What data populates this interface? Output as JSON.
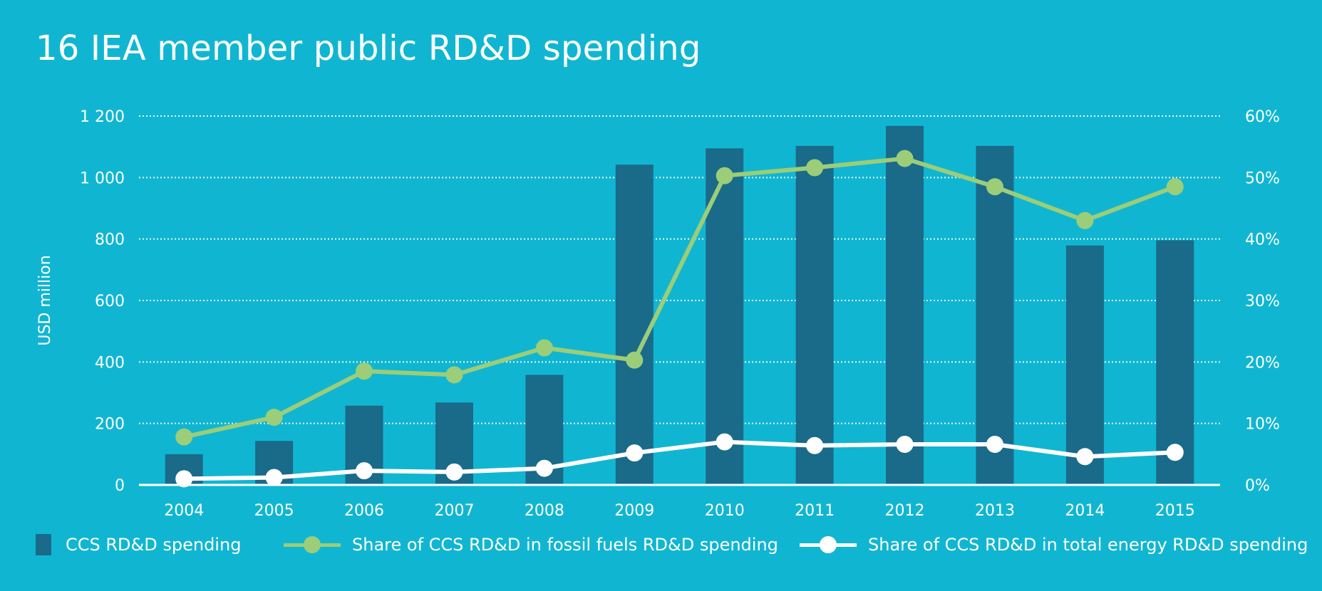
{
  "title": "16 IEA member public RD&D spending",
  "chart_data": {
    "type": "bar",
    "categories": [
      "2004",
      "2005",
      "2006",
      "2007",
      "2008",
      "2009",
      "2010",
      "2011",
      "2012",
      "2013",
      "2014",
      "2015"
    ],
    "ylabel": "USD million",
    "ylim": [
      0,
      1200
    ],
    "y_ticks": [
      "0",
      "200",
      "400",
      "600",
      "800",
      "1 000",
      "1 200"
    ],
    "y2lim": [
      0,
      60
    ],
    "y2_ticks": [
      "0%",
      "10%",
      "20%",
      "30%",
      "40%",
      "50%",
      "60%"
    ],
    "grid": true,
    "legend_position": "bottom",
    "series": [
      {
        "name": "CCS RD&D spending",
        "type": "bar",
        "axis": "left",
        "color": "#1a6a8a",
        "values": [
          100,
          143,
          258,
          268,
          358,
          1042,
          1095,
          1103,
          1168,
          1103,
          779,
          796
        ]
      },
      {
        "name": "Share of CCS RD&D in fossil fuels RD&D spending",
        "type": "line",
        "axis": "right",
        "color": "#9ccd78",
        "values": [
          7.8,
          11.0,
          18.5,
          17.9,
          22.3,
          20.3,
          50.3,
          51.6,
          53.1,
          48.5,
          43.0,
          48.5
        ]
      },
      {
        "name": "Share of CCS RD&D in total energy RD&D spending",
        "type": "line",
        "axis": "right",
        "color": "#ffffff",
        "values": [
          1.0,
          1.2,
          2.3,
          2.1,
          2.7,
          5.2,
          7.0,
          6.4,
          6.6,
          6.6,
          4.6,
          5.3
        ]
      }
    ]
  }
}
